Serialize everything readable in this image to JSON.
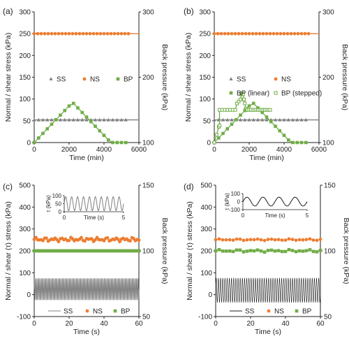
{
  "colors": {
    "ns": "#ED7D31",
    "bp": "#70AD47",
    "ss": "#808080",
    "ss_dark": "#1A1A1A",
    "axis": "#222222"
  },
  "chart_data": [
    {
      "panel_label": "(a)",
      "type": "line",
      "xlabel": "Time (min)",
      "ylabel": "Normal / shear stress (kPa)",
      "y2label": "Back pressure (kPa)",
      "xlim": [
        0,
        6000
      ],
      "ylim": [
        0,
        300
      ],
      "y2lim": [
        100,
        300
      ],
      "xticks": [
        "0",
        "2000",
        "4000",
        "6000"
      ],
      "yticks": [
        "0",
        "50",
        "100",
        "150",
        "200",
        "250",
        "300"
      ],
      "y2ticks": [
        "100",
        "200",
        "300"
      ],
      "legend": {
        "placement": "middle-center",
        "entries": [
          "SS",
          "NS",
          "BP"
        ]
      },
      "series": [
        {
          "name": "SS",
          "marker": "triangle",
          "axis": "left",
          "x": [
            0,
            250,
            500,
            750,
            1000,
            1250,
            1500,
            1750,
            2000,
            2250,
            2500,
            2750,
            3000,
            3250,
            3500,
            3750,
            4000,
            4250,
            4500,
            4750,
            5000,
            5250
          ],
          "y": [
            52,
            52,
            52,
            52,
            52,
            52,
            52,
            52,
            52,
            52,
            52,
            52,
            52,
            52,
            52,
            52,
            52,
            52,
            52,
            52,
            52,
            52
          ],
          "line_to_x": 6000
        },
        {
          "name": "NS",
          "marker": "circle",
          "axis": "left",
          "x": [
            0,
            200,
            400,
            600,
            800,
            1000,
            1200,
            1400,
            1600,
            1800,
            2000,
            2200,
            2400,
            2600,
            2800,
            3000,
            3200,
            3400,
            3600,
            3800,
            4000,
            4200,
            4400,
            4600,
            4800,
            5000,
            5200,
            5400
          ],
          "y": [
            250,
            250,
            250,
            250,
            250,
            250,
            250,
            250,
            250,
            250,
            250,
            250,
            250,
            250,
            250,
            250,
            250,
            250,
            250,
            250,
            250,
            250,
            250,
            250,
            250,
            250,
            250,
            250
          ],
          "line_to_x": 6000
        },
        {
          "name": "BP",
          "marker": "square",
          "axis": "right",
          "x": [
            0,
            250,
            500,
            750,
            1000,
            1250,
            1500,
            1750,
            2000,
            2250,
            2500,
            2750,
            3000,
            3250,
            3500,
            3750,
            4000,
            4250,
            4500,
            4750,
            5000,
            5250
          ],
          "y": [
            100,
            107,
            114,
            121,
            128,
            135,
            142,
            149,
            156,
            160,
            153,
            146,
            139,
            132,
            125,
            118,
            111,
            104,
            100,
            100,
            100,
            100
          ]
        }
      ]
    },
    {
      "panel_label": "(b)",
      "type": "line",
      "xlabel": "Time (min)",
      "ylabel": "Normal / shear stress (kPa)",
      "y2label": "Back pressure (kPa)",
      "xlim": [
        0,
        6000
      ],
      "ylim": [
        0,
        300
      ],
      "y2lim": [
        100,
        300
      ],
      "xticks": [
        "0",
        "2000",
        "4000",
        "6000"
      ],
      "yticks": [
        "0",
        "50",
        "100",
        "150",
        "200",
        "250",
        "300"
      ],
      "y2ticks": [
        "100",
        "200",
        "300"
      ],
      "legend": {
        "placement": "middle-center",
        "entries": [
          "SS",
          "NS",
          "BP (linear)",
          "BP (stepped)"
        ]
      },
      "series": [
        {
          "name": "SS",
          "marker": "triangle",
          "axis": "left",
          "x": [
            0,
            250,
            500,
            750,
            1000,
            1250,
            1500,
            1750,
            2000,
            2250,
            2500,
            2750,
            3000,
            3250,
            3500,
            3750,
            4000,
            4250,
            4500,
            4750,
            5000,
            5250
          ],
          "y": [
            52,
            52,
            52,
            52,
            52,
            52,
            52,
            52,
            52,
            52,
            52,
            52,
            52,
            52,
            52,
            52,
            52,
            52,
            52,
            52,
            52,
            52
          ],
          "line_to_x": 6000
        },
        {
          "name": "NS",
          "marker": "circle",
          "axis": "left",
          "x": [
            0,
            200,
            400,
            600,
            800,
            1000,
            1200,
            1400,
            1600,
            1800,
            2000,
            2200,
            2400,
            2600,
            2800,
            3000,
            3200,
            3400,
            3600,
            3800,
            4000,
            4200,
            4400,
            4600,
            4800,
            5000,
            5200,
            5400
          ],
          "y": [
            250,
            250,
            250,
            250,
            250,
            250,
            250,
            250,
            250,
            250,
            250,
            250,
            250,
            250,
            250,
            250,
            250,
            250,
            250,
            250,
            250,
            250,
            250,
            250,
            250,
            250,
            250,
            250
          ],
          "line_to_x": 6000
        },
        {
          "name": "BP (linear)",
          "marker": "square",
          "axis": "right",
          "x": [
            0,
            250,
            500,
            750,
            1000,
            1250,
            1500,
            1750,
            2000,
            2250,
            2500,
            2750,
            3000,
            3250,
            3500,
            3750,
            4000,
            4250,
            4500,
            4750,
            5000,
            5250
          ],
          "y": [
            100,
            107,
            114,
            121,
            128,
            135,
            142,
            149,
            156,
            160,
            153,
            146,
            139,
            132,
            125,
            118,
            111,
            104,
            100,
            100,
            100,
            100
          ]
        },
        {
          "name": "BP (stepped)",
          "marker": "open-square",
          "axis": "right",
          "x": [
            0,
            130,
            260,
            300,
            300,
            450,
            600,
            750,
            900,
            1050,
            1200,
            1300,
            1400,
            1500,
            1550,
            1600,
            1650,
            1700,
            1750,
            1800,
            1850,
            1900,
            2000,
            2100,
            2200,
            2300,
            2400,
            2500,
            2600,
            2700,
            2800,
            2900,
            3000,
            3100,
            3200
          ],
          "y": [
            100,
            112,
            124,
            126,
            150,
            150,
            150,
            150,
            150,
            150,
            150,
            160,
            163,
            166,
            174,
            175,
            174,
            166,
            160,
            152,
            150,
            150,
            150,
            150,
            150,
            150,
            150,
            150,
            150,
            150,
            150,
            150,
            150,
            150,
            150
          ]
        }
      ]
    },
    {
      "panel_label": "(c)",
      "type": "line",
      "xlabel": "Time (s)",
      "ylabel": "Normal / shear (τ) stress (kPa)",
      "y2label": "Back pressure (kPa)",
      "xlim": [
        0,
        60
      ],
      "ylim": [
        -100,
        500
      ],
      "y2lim": [
        50,
        150
      ],
      "xticks": [
        "0",
        "20",
        "40",
        "60"
      ],
      "yticks": [
        "-100",
        "0",
        "100",
        "200",
        "300",
        "400",
        "500"
      ],
      "y2ticks": [
        "50",
        "100",
        "150"
      ],
      "legend": {
        "placement": "bottom",
        "entries": [
          "SS",
          "NS",
          "BP"
        ]
      },
      "shear": {
        "amplitude": 50,
        "mean": 25,
        "frequency_hz": 2,
        "color_key": "ss"
      },
      "series": [
        {
          "name": "NS",
          "marker": "circle",
          "axis": "left",
          "base": 252,
          "spread": 10,
          "step": 1
        },
        {
          "name": "BP",
          "marker": "square",
          "axis": "right",
          "base": 100,
          "spread": 0,
          "step": 1
        }
      ],
      "inset": {
        "ylabel": "τ (kPa)",
        "xlabel": "Time (s)",
        "xlim": [
          0,
          5
        ],
        "ylim": [
          0,
          100
        ],
        "xticks": [
          "0",
          "5"
        ],
        "yticks": [
          "0",
          "50",
          "100"
        ],
        "mean": 50,
        "amplitude": 43,
        "frequency_hz": 2,
        "color_key": "ss"
      }
    },
    {
      "panel_label": "(d)",
      "type": "line",
      "xlabel": "Time (s)",
      "ylabel": "Normal / shear (τ) stress (kPa)",
      "y2label": "Back pressure (kPa)",
      "xlim": [
        0,
        60
      ],
      "ylim": [
        -100,
        500
      ],
      "y2lim": [
        50,
        150
      ],
      "xticks": [
        "0",
        "20",
        "40",
        "60"
      ],
      "yticks": [
        "-100",
        "0",
        "100",
        "200",
        "300",
        "400",
        "500"
      ],
      "y2ticks": [
        "50",
        "100",
        "150"
      ],
      "legend": {
        "placement": "bottom",
        "entries": [
          "SS",
          "NS",
          "BP"
        ]
      },
      "shear": {
        "amplitude": 55,
        "mean": 20,
        "frequency_hz": 0.8,
        "color_key": "ss_dark"
      },
      "series": [
        {
          "name": "NS",
          "marker": "circle",
          "axis": "left",
          "base": 251,
          "spread": 4,
          "step": 2
        },
        {
          "name": "BP",
          "marker": "square",
          "axis": "right",
          "base": 100,
          "spread": 1,
          "step": 2
        }
      ],
      "inset": {
        "ylabel": "τ (kPa)",
        "xlabel": "Time (s)",
        "xlim": [
          0,
          5
        ],
        "ylim": [
          -100,
          100
        ],
        "xticks": [
          "0",
          "5"
        ],
        "yticks": [
          "-100",
          "0",
          "100"
        ],
        "mean": 0,
        "amplitude": 55,
        "frequency_hz": 0.8,
        "color_key": "ss_dark"
      }
    }
  ]
}
